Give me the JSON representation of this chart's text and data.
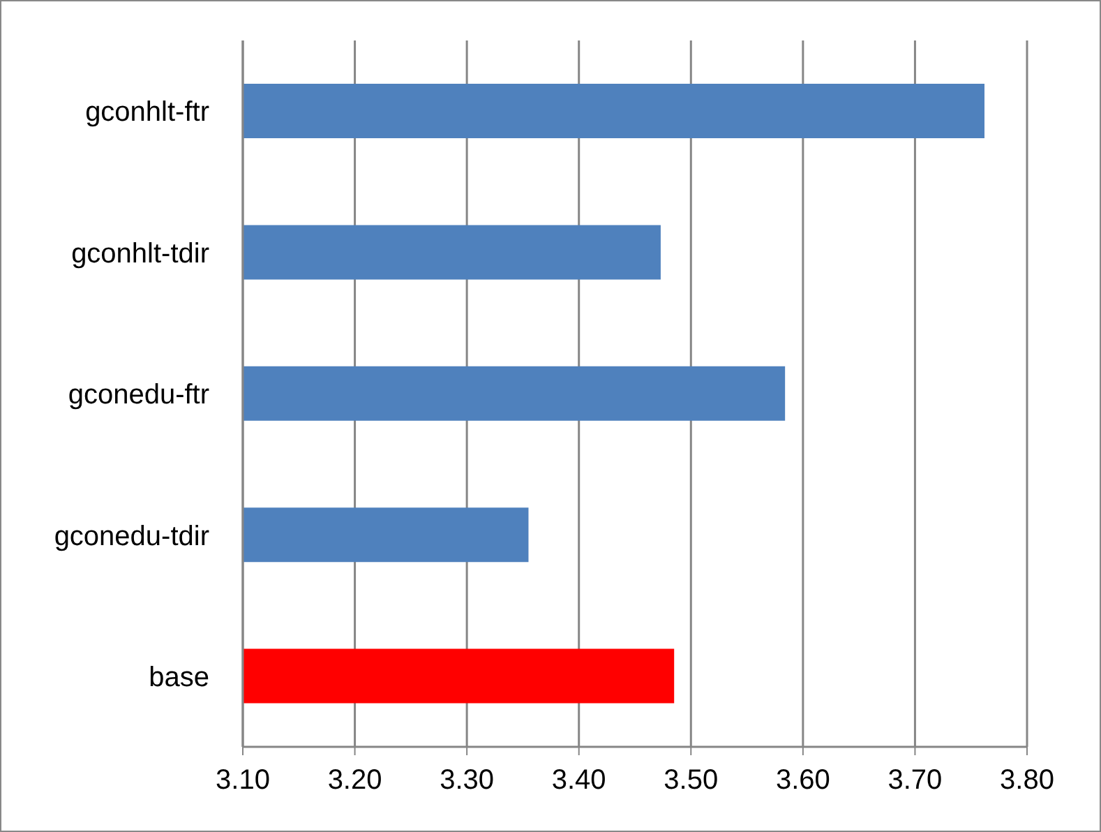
{
  "chart_data": {
    "type": "bar",
    "orientation": "horizontal",
    "categories": [
      "gconhlt-ftr",
      "gconhlt-tdir",
      "gconedu-ftr",
      "gconedu-tdir",
      "base"
    ],
    "values": [
      3.762,
      3.473,
      3.584,
      3.355,
      3.485
    ],
    "colors": [
      "#4f81bd",
      "#4f81bd",
      "#4f81bd",
      "#4f81bd",
      "#ff0000"
    ],
    "xlim": [
      3.1,
      3.8
    ],
    "xticks": [
      {
        "value": 3.1,
        "label": "3.10"
      },
      {
        "value": 3.2,
        "label": "3.20"
      },
      {
        "value": 3.3,
        "label": "3.30"
      },
      {
        "value": 3.4,
        "label": "3.40"
      },
      {
        "value": 3.5,
        "label": "3.50"
      },
      {
        "value": 3.6,
        "label": "3.60"
      },
      {
        "value": 3.7,
        "label": "3.70"
      },
      {
        "value": 3.8,
        "label": "3.80"
      }
    ],
    "grid": "x"
  }
}
